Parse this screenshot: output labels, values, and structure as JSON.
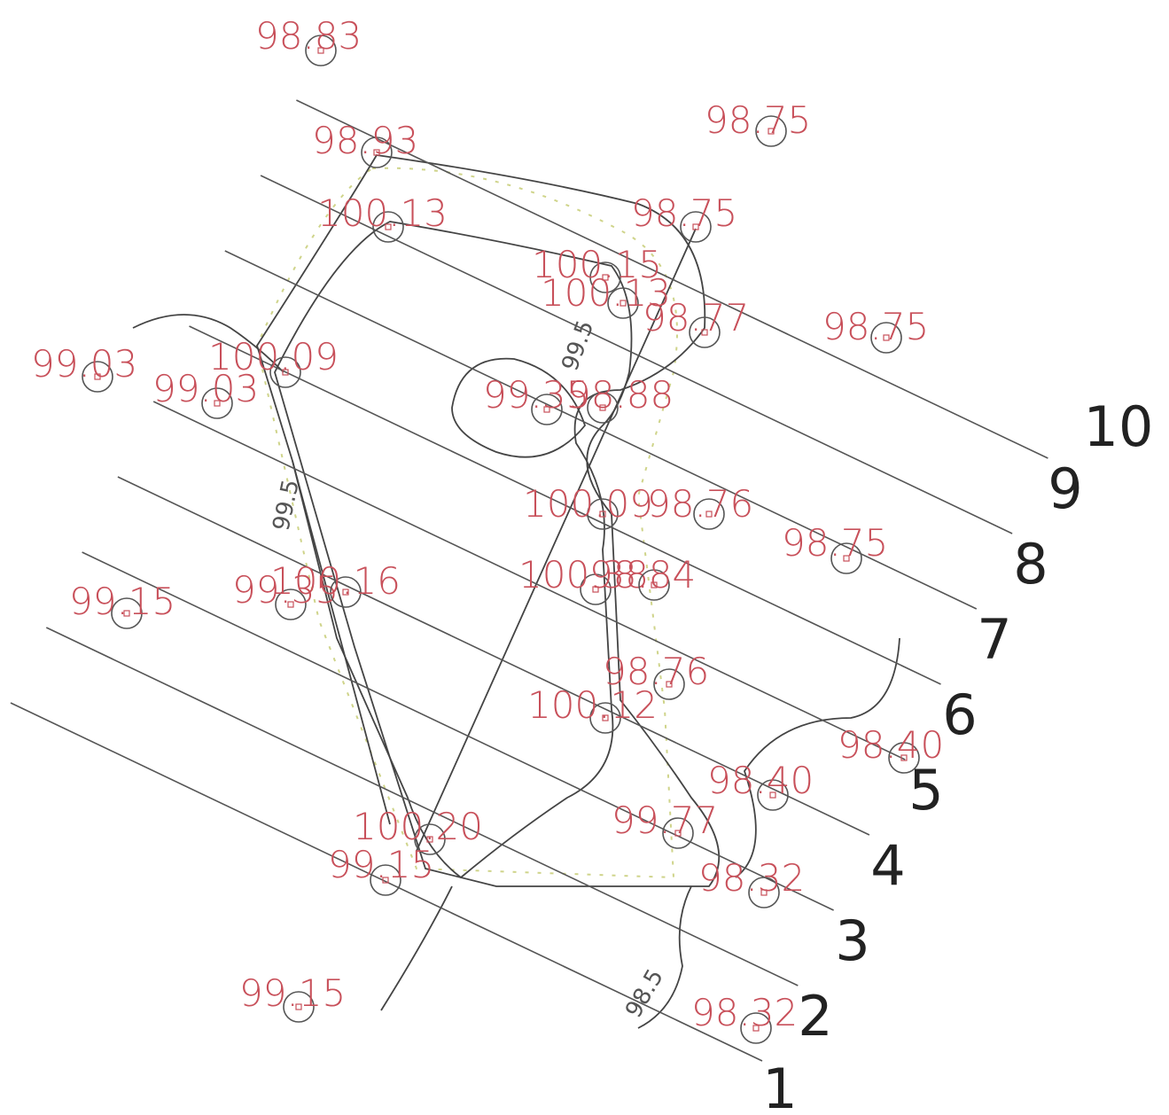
{
  "spot_heights": [
    "98.83",
    "98.93",
    "98.75",
    "100.13",
    "98.75",
    "100.15",
    "100.13",
    "98.77",
    "98.75",
    "99.03",
    "100.09",
    "99.03",
    "99.35",
    "98.88",
    "100.09",
    "98.76",
    "98.75",
    "99.15",
    "99.35",
    "100.16",
    "100.38",
    "98.84",
    "98.76",
    "100.12",
    "98.40",
    "98.40",
    "100.20",
    "99.77",
    "99.15",
    "98.32",
    "99.15",
    "98.32"
  ],
  "contour_labels": [
    "99.5",
    "99.5",
    "98.5"
  ],
  "sections": [
    "1",
    "2",
    "3",
    "4",
    "5",
    "6",
    "7",
    "8",
    "9",
    "10"
  ]
}
